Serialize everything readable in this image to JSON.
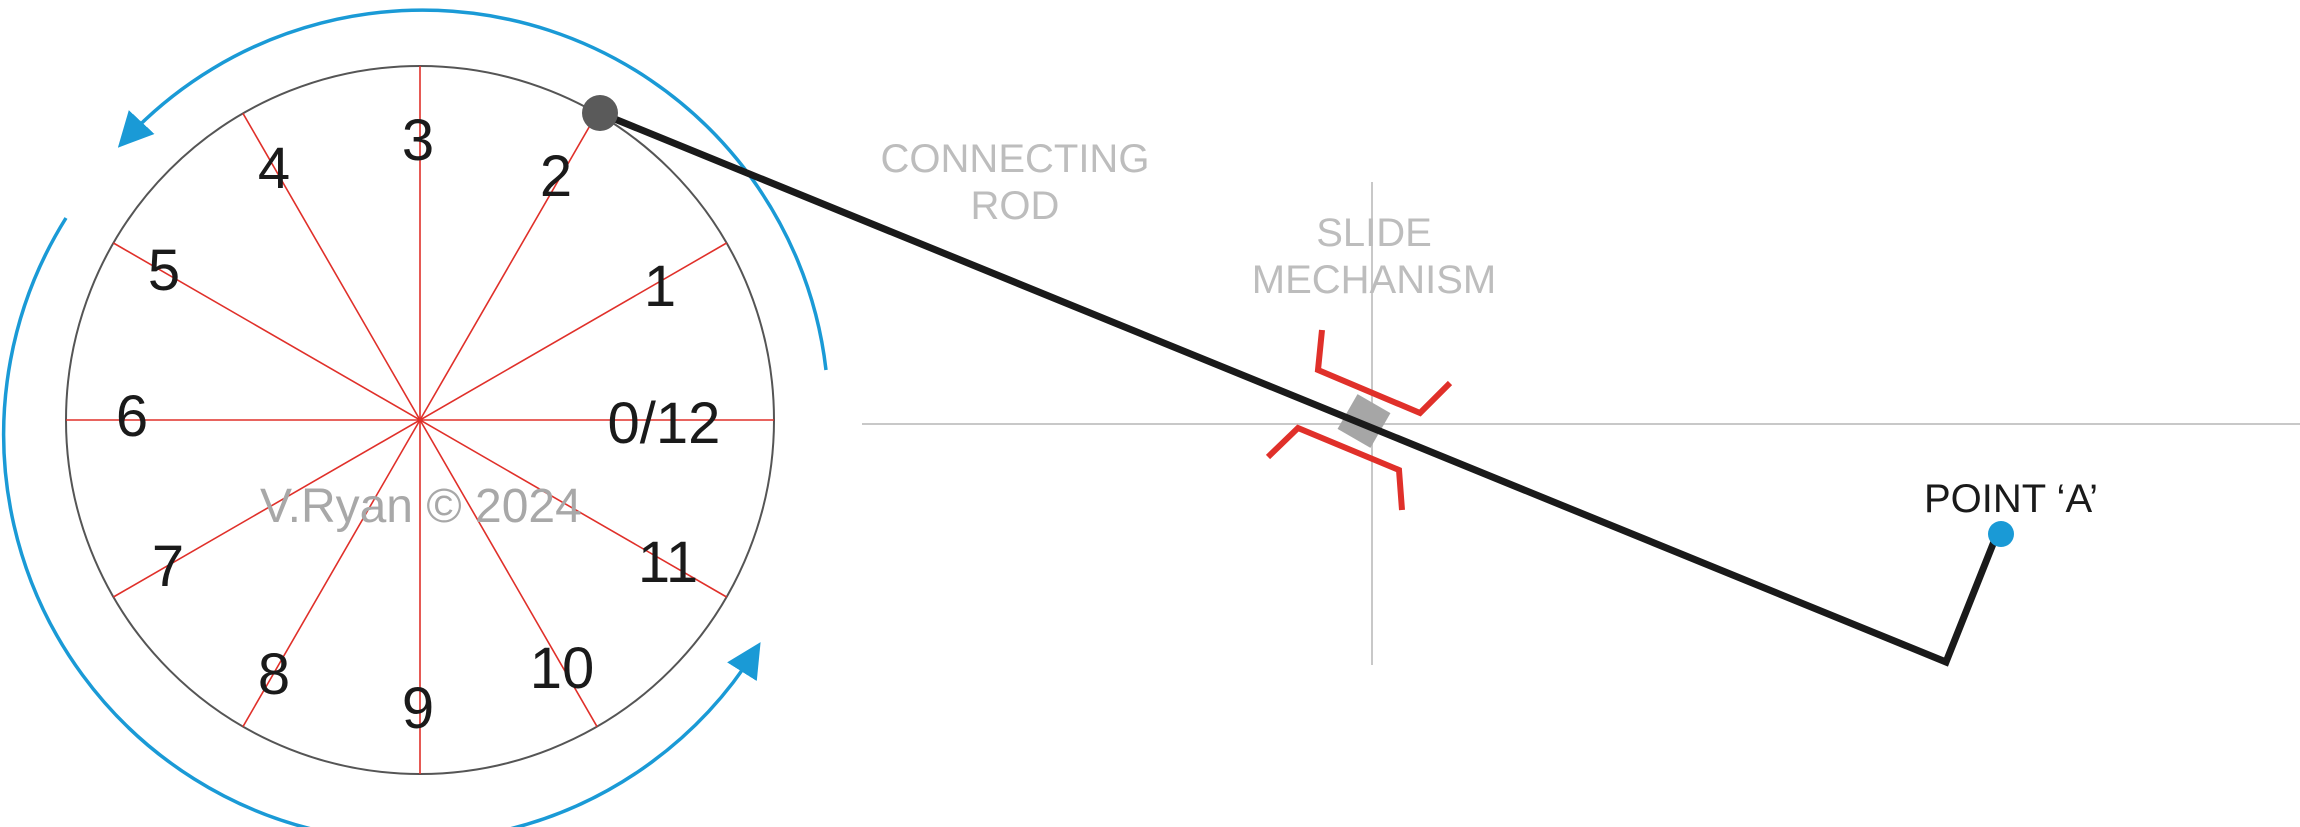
{
  "diagram": {
    "crank_positions": [
      "0/12",
      "1",
      "2",
      "3",
      "4",
      "5",
      "6",
      "7",
      "8",
      "9",
      "10",
      "11"
    ],
    "labels": {
      "connecting_rod": [
        "CONNECTING",
        "ROD"
      ],
      "slide_mechanism": [
        "SLIDE",
        "MECHANISM"
      ],
      "point_a": "POINT ‘A’"
    },
    "watermark": "V.Ryan © 2024",
    "colors": {
      "rotation_arrows": "#1a9ad6",
      "spokes": "#e0302a",
      "slide_guides": "#e0302a",
      "rod": "#1a1a1a",
      "crank_pin": "#5a5a5a",
      "point_a": "#1a9ad6",
      "slide_block": "#a6a6a6",
      "guide_lines": "#c8c8c8",
      "circle": "#555555",
      "grey_text": "#bdbdbd"
    }
  }
}
